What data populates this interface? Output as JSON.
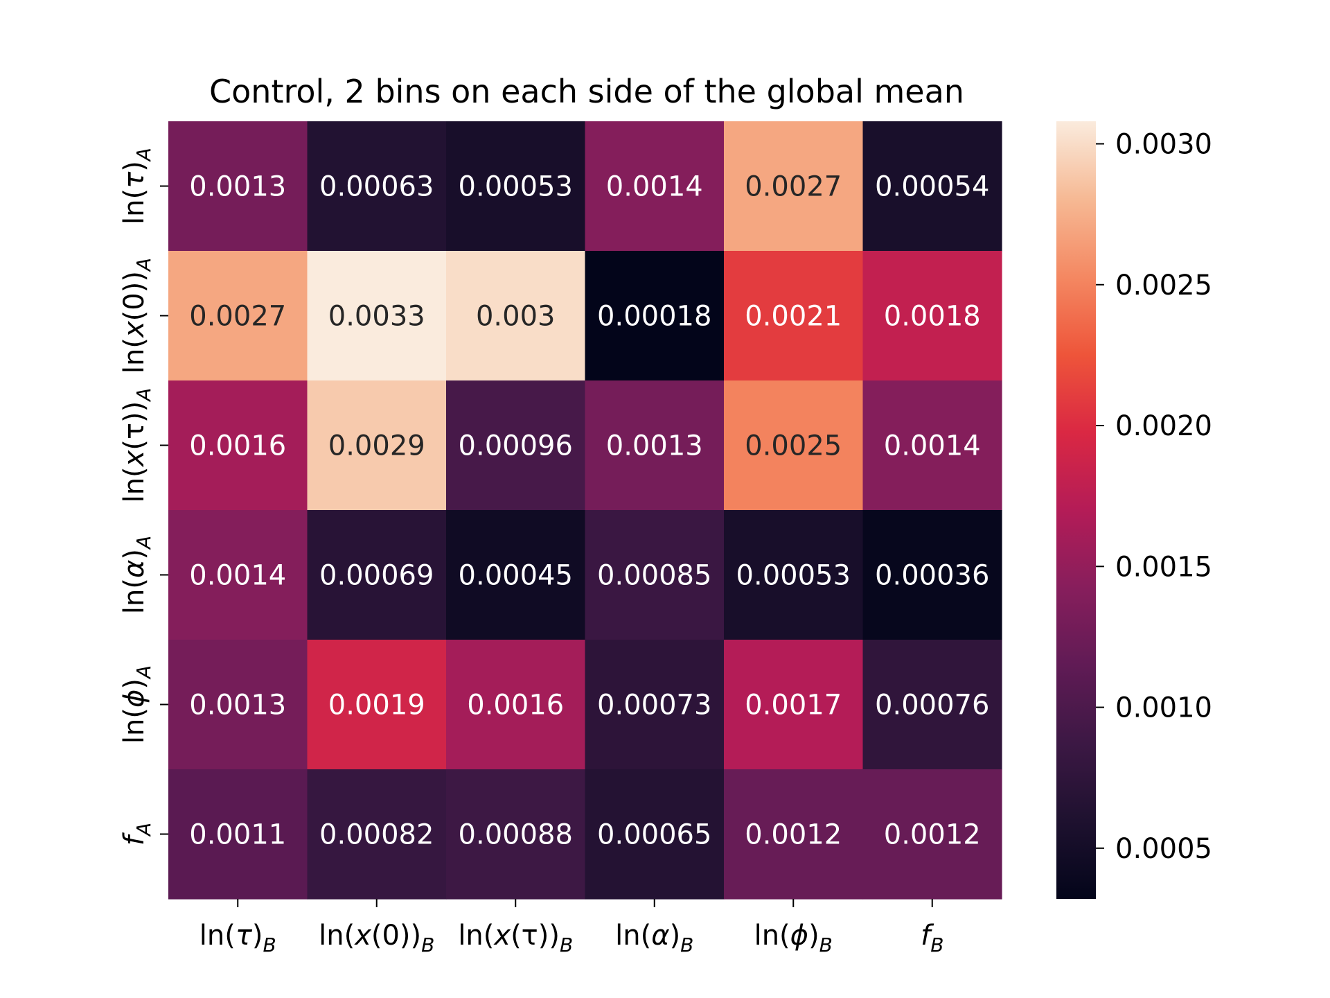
{
  "chart_data": {
    "type": "heatmap",
    "title": "Control, 2 bins on each side of the global mean",
    "x_labels": [
      {
        "base": "ln(",
        "sym": "τ",
        "close": ")",
        "sub": "B"
      },
      {
        "base": "ln(",
        "sym": "x",
        "close": "(0))",
        "sub": "B"
      },
      {
        "base": "ln(",
        "sym": "x",
        "close": "(τ))",
        "sub": "B"
      },
      {
        "base": "ln(",
        "sym": "α",
        "close": ")",
        "sub": "B"
      },
      {
        "base": "ln(",
        "sym": "ϕ",
        "close": ")",
        "sub": "B"
      },
      {
        "base": "",
        "sym": "f",
        "close": "",
        "sub": "B"
      }
    ],
    "y_labels": [
      {
        "base": "ln(",
        "sym": "τ",
        "close": ")",
        "sub": "A"
      },
      {
        "base": "ln(",
        "sym": "x",
        "close": "(0))",
        "sub": "A"
      },
      {
        "base": "ln(",
        "sym": "x",
        "close": "(τ))",
        "sub": "A"
      },
      {
        "base": "ln(",
        "sym": "α",
        "close": ")",
        "sub": "A"
      },
      {
        "base": "ln(",
        "sym": "ϕ",
        "close": ")",
        "sub": "A"
      },
      {
        "base": "",
        "sym": "f",
        "close": "",
        "sub": "A"
      }
    ],
    "values": [
      [
        0.0013,
        0.00063,
        0.00053,
        0.0014,
        0.0027,
        0.00054
      ],
      [
        0.0027,
        0.0033,
        0.003,
        0.00018,
        0.0021,
        0.0018
      ],
      [
        0.0016,
        0.0029,
        0.00096,
        0.0013,
        0.0025,
        0.0014
      ],
      [
        0.0014,
        0.00069,
        0.00045,
        0.00085,
        0.00053,
        0.00036
      ],
      [
        0.0013,
        0.0019,
        0.0016,
        0.00073,
        0.0017,
        0.00076
      ],
      [
        0.0011,
        0.00082,
        0.00088,
        0.00065,
        0.0012,
        0.0012
      ]
    ],
    "annotations": [
      [
        "0.0013",
        "0.00063",
        "0.00053",
        "0.0014",
        "0.0027",
        "0.00054"
      ],
      [
        "0.0027",
        "0.0033",
        "0.003",
        "0.00018",
        "0.0021",
        "0.0018"
      ],
      [
        "0.0016",
        "0.0029",
        "0.00096",
        "0.0013",
        "0.0025",
        "0.0014"
      ],
      [
        "0.0014",
        "0.00069",
        "0.00045",
        "0.00085",
        "0.00053",
        "0.00036"
      ],
      [
        "0.0013",
        "0.0019",
        "0.0016",
        "0.00073",
        "0.0017",
        "0.00076"
      ],
      [
        "0.0011",
        "0.00082",
        "0.00088",
        "0.00065",
        "0.0012",
        "0.0012"
      ]
    ],
    "colorbar": {
      "range": [
        0.00032,
        0.00308
      ],
      "ticks": [
        0.0005,
        0.001,
        0.0015,
        0.002,
        0.0025,
        0.003
      ],
      "tick_labels": [
        "0.0005",
        "0.0010",
        "0.0015",
        "0.0020",
        "0.0025",
        "0.0030"
      ],
      "colormap": "rocket"
    }
  }
}
